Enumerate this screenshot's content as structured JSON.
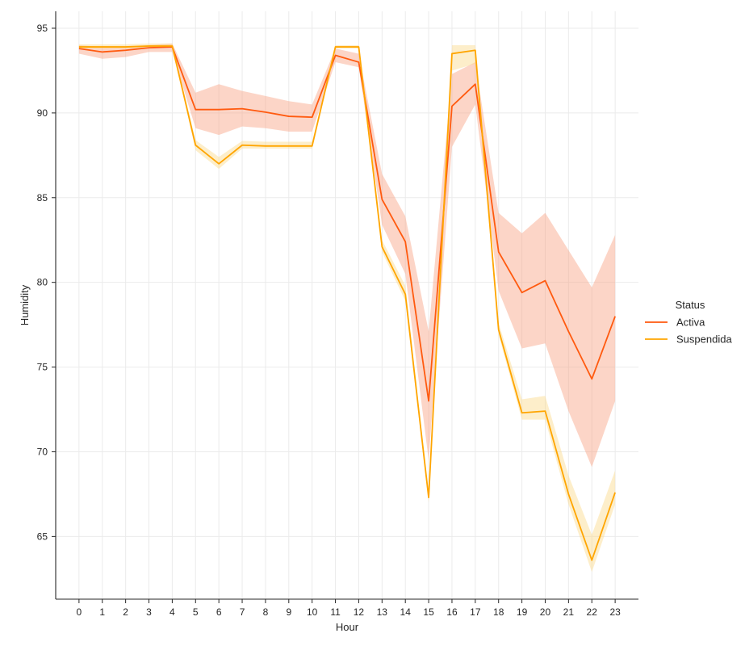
{
  "chart_data": {
    "type": "line",
    "title": "",
    "xlabel": "Hour",
    "ylabel": "Humidity",
    "x": [
      0,
      1,
      2,
      3,
      4,
      5,
      6,
      7,
      8,
      9,
      10,
      11,
      12,
      13,
      14,
      15,
      16,
      17,
      18,
      19,
      20,
      21,
      22,
      23
    ],
    "xlim": [
      -1,
      24
    ],
    "ylim": [
      61.3,
      96.0
    ],
    "yticks": [
      65,
      70,
      75,
      80,
      85,
      90,
      95
    ],
    "grid": true,
    "legend": {
      "title": "Status",
      "position": "right"
    },
    "series": [
      {
        "name": "Activa",
        "color": "#ff5a0f",
        "band_color": "#f9a283",
        "values": [
          93.8,
          93.6,
          93.7,
          93.85,
          93.9,
          90.2,
          90.2,
          90.25,
          90.05,
          89.8,
          89.75,
          93.4,
          93.0,
          84.9,
          82.4,
          73.0,
          90.4,
          91.7,
          81.8,
          79.4,
          80.1,
          77.1,
          74.3,
          78.0
        ],
        "lower": [
          93.5,
          93.2,
          93.3,
          93.6,
          93.6,
          89.1,
          88.7,
          89.2,
          89.1,
          88.9,
          88.9,
          93.0,
          92.7,
          83.4,
          80.5,
          69.5,
          88.0,
          90.5,
          79.5,
          76.1,
          76.4,
          72.4,
          69.1,
          73.0
        ],
        "upper": [
          94.0,
          93.9,
          93.9,
          94.0,
          94.1,
          91.2,
          91.7,
          91.3,
          91.0,
          90.7,
          90.5,
          93.8,
          93.5,
          86.4,
          83.9,
          77.1,
          92.3,
          93.0,
          84.1,
          82.9,
          84.1,
          81.9,
          79.7,
          82.8
        ]
      },
      {
        "name": "Suspendida",
        "color": "#ffa500",
        "band_color": "#fbd98a",
        "values": [
          93.9,
          93.9,
          93.9,
          93.95,
          93.95,
          88.1,
          87.0,
          88.1,
          88.05,
          88.05,
          88.05,
          93.9,
          93.9,
          82.1,
          79.3,
          67.3,
          93.5,
          93.7,
          77.2,
          72.3,
          72.4,
          67.5,
          63.6,
          67.6
        ],
        "lower": [
          93.8,
          93.8,
          93.8,
          93.85,
          93.85,
          87.8,
          86.7,
          87.9,
          87.9,
          87.9,
          87.9,
          93.8,
          93.8,
          81.8,
          78.9,
          67.0,
          92.5,
          92.9,
          76.9,
          71.9,
          71.9,
          66.9,
          62.9,
          66.9
        ],
        "upper": [
          94.05,
          94.05,
          94.05,
          94.1,
          94.1,
          88.4,
          87.4,
          88.35,
          88.3,
          88.3,
          88.3,
          94.0,
          94.0,
          82.5,
          79.8,
          67.6,
          94.0,
          94.0,
          77.6,
          73.1,
          73.3,
          68.6,
          65.1,
          68.9
        ]
      }
    ]
  }
}
